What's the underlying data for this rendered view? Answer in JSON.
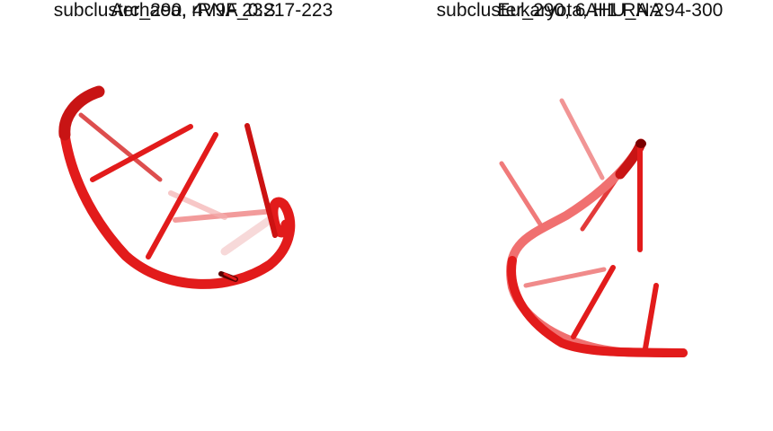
{
  "panels": [
    {
      "caption_line1": "subcluster_290, 4V9F_0:217-223",
      "caption_line2": "Archaea, rRNA 23S"
    },
    {
      "caption_line1": "subcluster_290, 6AHU_A:294-300",
      "caption_line2": "Eukaryota, H1 RNA"
    }
  ],
  "colors": {
    "backbone": "#e21b1b",
    "backbone_dark": "#b30d0d",
    "backbone_faded": "#f08a8a",
    "background": "#ffffff"
  }
}
